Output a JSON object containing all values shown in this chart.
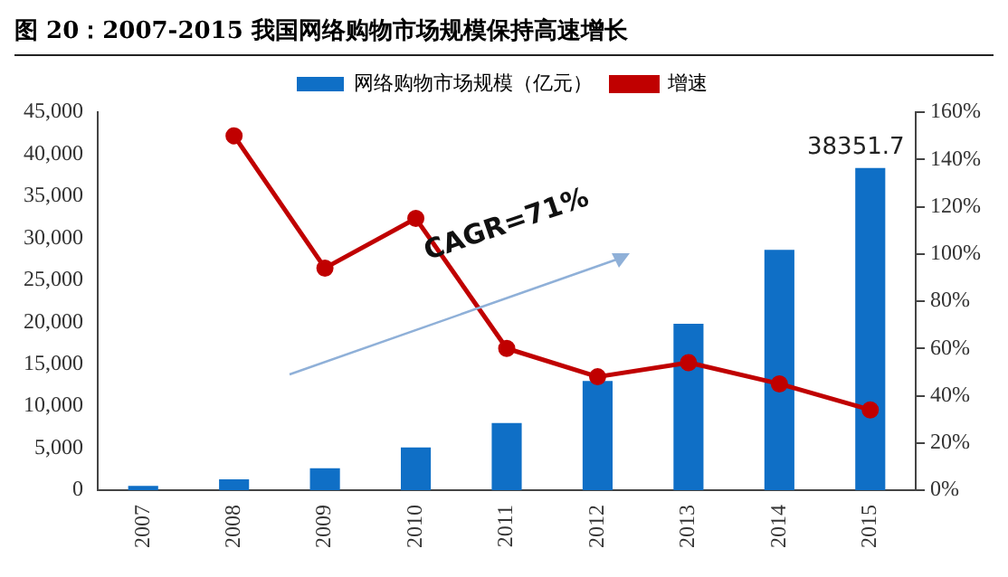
{
  "chart_data": {
    "type": "bar",
    "title": "图 20：2007-2015 我国网络购物市场规模保持高速增长",
    "categories": [
      "2007",
      "2008",
      "2009",
      "2010",
      "2011",
      "2012",
      "2013",
      "2014",
      "2015"
    ],
    "series": [
      {
        "name": "网络购物市场规模（亿元）",
        "color": "#0f6fc6",
        "values": [
          500,
          1300,
          2600,
          5100,
          8000,
          13000,
          19800,
          28600,
          38351.7
        ],
        "value_labels": [
          null,
          null,
          null,
          null,
          null,
          null,
          null,
          null,
          "38351.7"
        ]
      },
      {
        "name": "增速",
        "type": "line",
        "axis": "y2",
        "color": "#c00000",
        "marker": "circle",
        "values": [
          null,
          150,
          94,
          115,
          60,
          48,
          54,
          45,
          34
        ]
      }
    ],
    "ylim": [
      0,
      45000
    ],
    "yticks": [
      {
        "value": 0,
        "label": "0"
      },
      {
        "value": 5000,
        "label": "5,000"
      },
      {
        "value": 10000,
        "label": "10,000"
      },
      {
        "value": 15000,
        "label": "15,000"
      },
      {
        "value": 20000,
        "label": "20,000"
      },
      {
        "value": 25000,
        "label": "25,000"
      },
      {
        "value": 30000,
        "label": "30,000"
      },
      {
        "value": 35000,
        "label": "35,000"
      },
      {
        "value": 40000,
        "label": "40,000"
      },
      {
        "value": 45000,
        "label": "45,000"
      }
    ],
    "y2lim": [
      0,
      160
    ],
    "y2ticks": [
      {
        "value": 0,
        "label": "0%"
      },
      {
        "value": 20,
        "label": "20%"
      },
      {
        "value": 40,
        "label": "40%"
      },
      {
        "value": 60,
        "label": "60%"
      },
      {
        "value": 80,
        "label": "80%"
      },
      {
        "value": 100,
        "label": "100%"
      },
      {
        "value": 120,
        "label": "120%"
      },
      {
        "value": 140,
        "label": "140%"
      },
      {
        "value": 160,
        "label": "160%"
      }
    ],
    "annotations": [
      "CAGR=71%"
    ],
    "legend": "top",
    "grid": false
  }
}
